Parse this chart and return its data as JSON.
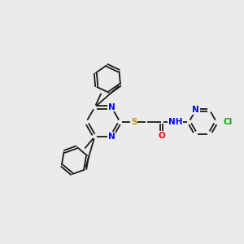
{
  "background_color": "#ebebeb",
  "bond_color": "#1a1a1a",
  "atom_colors": {
    "N": "#0000ff",
    "O": "#ff0000",
    "S": "#b8960c",
    "Cl": "#00aa00",
    "H": "#555555",
    "C": "#1a1a1a"
  },
  "fontsize": 7.5,
  "lw": 1.3
}
